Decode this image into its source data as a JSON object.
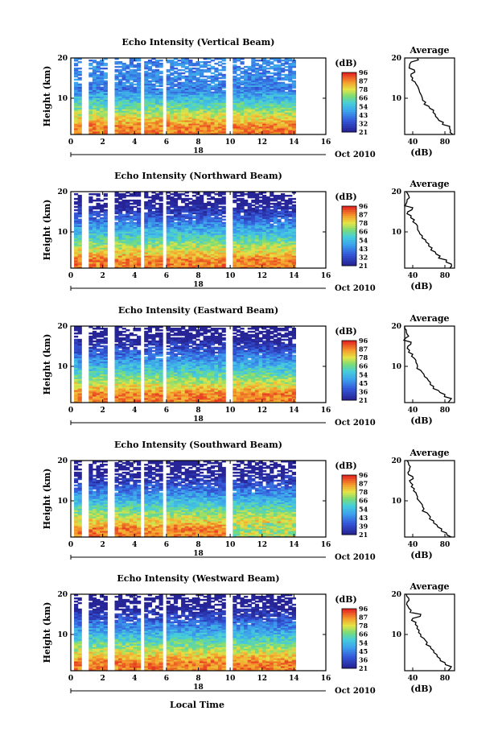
{
  "figure": {
    "xlabel": "Local Time",
    "date_label": "Oct 2010",
    "day_label": "18"
  },
  "chart_data": [
    {
      "type": "heatmap",
      "title": "Echo Intensity (Vertical Beam)",
      "ylabel": "Height (km)",
      "xlabel": "Local Time",
      "x_ticks": [
        "0",
        "2",
        "4",
        "6",
        "8",
        "10",
        "12",
        "14",
        "16"
      ],
      "y_ticks": [
        "20",
        "10"
      ],
      "xlim": [
        0,
        16
      ],
      "ylim": [
        1,
        20
      ],
      "colorbar": {
        "label": "(dB)",
        "ticks": [
          "96",
          "87",
          "78",
          "66",
          "54",
          "43",
          "32",
          "21"
        ],
        "range": [
          21,
          96
        ]
      },
      "data_gaps_hours": [
        [
          0.5,
          1.0
        ],
        [
          2.1,
          2.6
        ],
        [
          4.2,
          4.5
        ],
        [
          5.6,
          5.9
        ],
        [
          9.6,
          10.0
        ]
      ],
      "data_end_hour": 14.1,
      "average_profile": {
        "title": "Average",
        "xlabel": "(dB)",
        "x_ticks": [
          "40",
          "80"
        ],
        "y_ticks": [
          "20",
          "10"
        ],
        "xlim": [
          30,
          92
        ],
        "ylim": [
          1,
          20
        ],
        "height_km": [
          1,
          2,
          3,
          4,
          5,
          6,
          7,
          8,
          9,
          10,
          11,
          12,
          13,
          14,
          15,
          16,
          17,
          18,
          19,
          20
        ],
        "intensity_db": [
          90,
          87,
          86,
          78,
          71,
          68,
          66,
          60,
          56,
          52,
          50,
          48,
          46,
          43,
          40,
          38,
          42,
          36,
          38,
          46
        ]
      }
    },
    {
      "type": "heatmap",
      "title": "Echo Intensity (Northward Beam)",
      "ylabel": "Height (km)",
      "xlabel": "Local Time",
      "x_ticks": [
        "0",
        "2",
        "4",
        "6",
        "8",
        "10",
        "12",
        "14",
        "16"
      ],
      "y_ticks": [
        "20",
        "10"
      ],
      "xlim": [
        0,
        16
      ],
      "ylim": [
        1,
        20
      ],
      "colorbar": {
        "label": "(dB)",
        "ticks": [
          "96",
          "87",
          "78",
          "66",
          "54",
          "43",
          "32",
          "21"
        ],
        "range": [
          21,
          96
        ]
      },
      "data_gaps_hours": [
        [
          0.5,
          1.0
        ],
        [
          2.1,
          2.6
        ],
        [
          4.2,
          4.5
        ],
        [
          5.6,
          5.9
        ],
        [
          9.6,
          10.0
        ]
      ],
      "data_end_hour": 14.1,
      "average_profile": {
        "title": "Average",
        "xlabel": "(dB)",
        "x_ticks": [
          "40",
          "80"
        ],
        "y_ticks": [
          "20",
          "10"
        ],
        "xlim": [
          30,
          92
        ],
        "ylim": [
          1,
          20
        ],
        "height_km": [
          1,
          2,
          3,
          4,
          5,
          6,
          7,
          8,
          9,
          10,
          11,
          12,
          13,
          14,
          15,
          16,
          17,
          18,
          19,
          20
        ],
        "intensity_db": [
          86,
          88,
          82,
          74,
          68,
          64,
          60,
          56,
          52,
          48,
          46,
          44,
          42,
          38,
          34,
          40,
          32,
          33,
          35,
          32
        ]
      }
    },
    {
      "type": "heatmap",
      "title": "Echo Intensity (Eastward Beam)",
      "ylabel": "Height (km)",
      "xlabel": "Local Time",
      "x_ticks": [
        "0",
        "2",
        "4",
        "6",
        "8",
        "10",
        "12",
        "14",
        "16"
      ],
      "y_ticks": [
        "20",
        "10"
      ],
      "xlim": [
        0,
        16
      ],
      "ylim": [
        1,
        20
      ],
      "colorbar": {
        "label": "(dB)",
        "ticks": [
          "96",
          "87",
          "78",
          "66",
          "54",
          "45",
          "36",
          "21"
        ],
        "range": [
          21,
          96
        ]
      },
      "data_gaps_hours": [
        [
          0.5,
          1.0
        ],
        [
          2.1,
          2.6
        ],
        [
          4.2,
          4.5
        ],
        [
          5.6,
          5.9
        ],
        [
          9.6,
          10.0
        ]
      ],
      "data_end_hour": 14.1,
      "average_profile": {
        "title": "Average",
        "xlabel": "(dB)",
        "x_ticks": [
          "40",
          "80"
        ],
        "y_ticks": [
          "20",
          "10"
        ],
        "xlim": [
          30,
          92
        ],
        "ylim": [
          1,
          20
        ],
        "height_km": [
          1,
          2,
          3,
          4,
          5,
          6,
          7,
          8,
          9,
          10,
          11,
          12,
          13,
          14,
          15,
          16,
          17,
          18,
          19,
          20
        ],
        "intensity_db": [
          84,
          88,
          80,
          72,
          66,
          62,
          58,
          54,
          50,
          46,
          44,
          42,
          40,
          36,
          34,
          38,
          31,
          33,
          32,
          30
        ]
      }
    },
    {
      "type": "heatmap",
      "title": "Echo Intensity (Southward Beam)",
      "ylabel": "Height (km)",
      "xlabel": "Local Time",
      "x_ticks": [
        "0",
        "2",
        "4",
        "6",
        "8",
        "10",
        "12",
        "14",
        "16"
      ],
      "y_ticks": [
        "20",
        "10"
      ],
      "xlim": [
        0,
        16
      ],
      "ylim": [
        1,
        20
      ],
      "colorbar": {
        "label": "(dB)",
        "ticks": [
          "96",
          "87",
          "78",
          "66",
          "54",
          "43",
          "39",
          "21"
        ],
        "range": [
          21,
          96
        ]
      },
      "data_gaps_hours": [
        [
          0.5,
          1.0
        ],
        [
          2.1,
          2.6
        ],
        [
          4.2,
          4.5
        ],
        [
          5.6,
          5.9
        ],
        [
          9.6,
          10.0
        ]
      ],
      "data_end_hour": 14.1,
      "average_profile": {
        "title": "Average",
        "xlabel": "(dB)",
        "x_ticks": [
          "40",
          "80"
        ],
        "y_ticks": [
          "20",
          "10"
        ],
        "xlim": [
          30,
          92
        ],
        "ylim": [
          1,
          20
        ],
        "height_km": [
          1,
          2,
          3,
          4,
          5,
          6,
          7,
          8,
          9,
          10,
          11,
          12,
          13,
          14,
          15,
          16,
          17,
          18,
          19,
          20
        ],
        "intensity_db": [
          88,
          82,
          76,
          70,
          66,
          62,
          58,
          54,
          52,
          48,
          46,
          44,
          42,
          40,
          36,
          40,
          34,
          36,
          35,
          33
        ]
      }
    },
    {
      "type": "heatmap",
      "title": "Echo Intensity (Westward Beam)",
      "ylabel": "Height (km)",
      "xlabel": "Local Time",
      "x_ticks": [
        "0",
        "2",
        "4",
        "6",
        "8",
        "10",
        "12",
        "14",
        "16"
      ],
      "y_ticks": [
        "20",
        "10"
      ],
      "xlim": [
        0,
        16
      ],
      "ylim": [
        1,
        20
      ],
      "colorbar": {
        "label": "(dB)",
        "ticks": [
          "96",
          "87",
          "78",
          "66",
          "54",
          "45",
          "36",
          "21"
        ],
        "range": [
          21,
          96
        ]
      },
      "data_gaps_hours": [
        [
          0.5,
          1.0
        ],
        [
          2.1,
          2.6
        ],
        [
          4.2,
          4.5
        ],
        [
          5.6,
          5.9
        ],
        [
          9.6,
          10.0
        ]
      ],
      "data_end_hour": 14.1,
      "average_profile": {
        "title": "Average",
        "xlabel": "(dB)",
        "x_ticks": [
          "40",
          "80"
        ],
        "y_ticks": [
          "20",
          "10"
        ],
        "xlim": [
          30,
          92
        ],
        "ylim": [
          1,
          20
        ],
        "height_km": [
          1,
          2,
          3,
          4,
          5,
          6,
          7,
          8,
          9,
          10,
          11,
          12,
          13,
          14,
          15,
          16,
          17,
          18,
          19,
          20
        ],
        "intensity_db": [
          84,
          88,
          80,
          74,
          70,
          66,
          62,
          58,
          54,
          50,
          48,
          46,
          44,
          40,
          50,
          38,
          34,
          33,
          35,
          32
        ]
      }
    }
  ]
}
